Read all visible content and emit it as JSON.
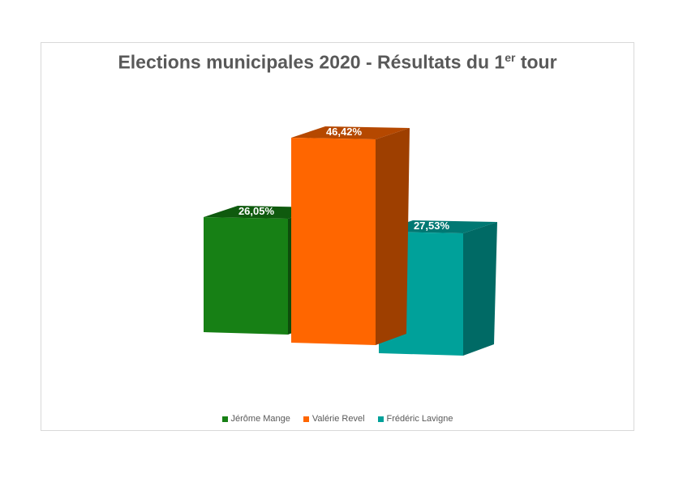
{
  "chart_data": {
    "type": "bar",
    "title_main": "Elections municipales 2020 - Résultats du 1",
    "title_sup": "er",
    "title_tail": " tour",
    "categories": [
      "Jérôme Mange",
      "Valérie Revel",
      "Frédéric Lavigne"
    ],
    "values": [
      26.05,
      46.42,
      27.53
    ],
    "data_labels": [
      "26,05%",
      "46,42%",
      "27,53%"
    ],
    "colors": {
      "front": [
        "#178015",
        "#ff6600",
        "#00a19a"
      ],
      "top": [
        "#0f5a0e",
        "#b54800",
        "#007873"
      ],
      "side": [
        "#0d4d0c",
        "#9e3f00",
        "#006a65"
      ]
    },
    "legend_position": "bottom",
    "grid": false,
    "three_d": true
  }
}
